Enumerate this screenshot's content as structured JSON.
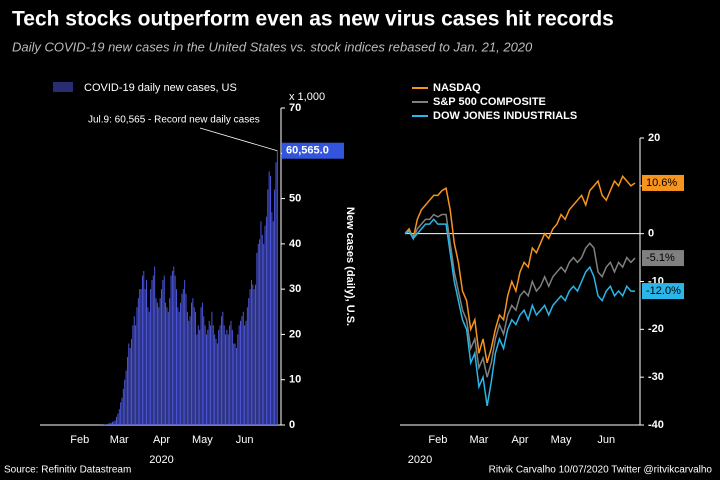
{
  "title": "Tech stocks outperform even as new virus cases hit records",
  "subtitle": "Daily COVID-19 new cases in the United States vs. stock indices rebased to Jan. 21, 2020",
  "source": "Source: Refinitiv Datastream",
  "credit": "Ritvik Carvalho 10/07/2020 Twitter @ritvikcarvalho",
  "chart_data": [
    {
      "type": "bar",
      "series": [
        {
          "name": "COVID-19 daily new cases, US",
          "color": "#4f58e0",
          "values": [
            0,
            0,
            0,
            0,
            0,
            0,
            0,
            0,
            0,
            0,
            0,
            0,
            0,
            0,
            0,
            0,
            0,
            0,
            0,
            0,
            0,
            0,
            0,
            0,
            0,
            0,
            0,
            0,
            0,
            0,
            0,
            0,
            0,
            0,
            0,
            0,
            0,
            0,
            0,
            0,
            0.01,
            0.02,
            0.03,
            0.06,
            0.1,
            0.2,
            0.3,
            0.4,
            0.5,
            0.7,
            0.8,
            1,
            1.8,
            2.5,
            3.5,
            5,
            6,
            8,
            10,
            12,
            15,
            18,
            17,
            19,
            22,
            24,
            22,
            26,
            28,
            30,
            30,
            33,
            34,
            30,
            32,
            26,
            25,
            30,
            32,
            33,
            35,
            28,
            27,
            26,
            28,
            30,
            32,
            33,
            27,
            26,
            25,
            28,
            33,
            34,
            35,
            33,
            30,
            26,
            25,
            27,
            29,
            30,
            32,
            29,
            25,
            23,
            24,
            27,
            28,
            26,
            25,
            20,
            22,
            21,
            26,
            27,
            24,
            22,
            20,
            21,
            23,
            22,
            25,
            22,
            20,
            19,
            18,
            21,
            22,
            24,
            25,
            22,
            20,
            21,
            20,
            22,
            23,
            21,
            18,
            18,
            17,
            20,
            22,
            23,
            24,
            25,
            22,
            23,
            26,
            28,
            30,
            32,
            31,
            30,
            31,
            38,
            40,
            41,
            45,
            42,
            40,
            44,
            46,
            52,
            56,
            55,
            47,
            45,
            52,
            58,
            60.565
          ]
        }
      ],
      "xticks": [
        {
          "value": 25,
          "label": "Feb"
        },
        {
          "value": 54,
          "label": "Mar"
        },
        {
          "value": 85,
          "label": "Apr"
        },
        {
          "value": 115,
          "label": "May"
        },
        {
          "value": 146,
          "label": "Jun"
        }
      ],
      "xlabel": "2020",
      "ylabel": "New cases (daily), U.S.",
      "yunit": "x 1,000",
      "ylim": [
        0,
        70
      ],
      "yticks": [
        0,
        10,
        20,
        30,
        40,
        50,
        60,
        70
      ],
      "annotation": "Jul.9: 60,565 - Record new daily cases",
      "last_label": "60,565.0"
    },
    {
      "type": "line",
      "series": [
        {
          "name": "NASDAQ",
          "color": "#f7941d",
          "end_label": "10.6%",
          "values": [
            0,
            1,
            -1,
            3,
            5,
            6,
            7,
            8,
            8,
            9,
            9.5,
            5,
            -2,
            -6,
            -12,
            -14,
            -20,
            -18,
            -25,
            -22,
            -27,
            -24,
            -20,
            -17,
            -18,
            -13,
            -10,
            -12,
            -8,
            -6,
            -7,
            -3,
            -4,
            -2,
            0,
            -1,
            1,
            2,
            4,
            3,
            5,
            6,
            7,
            8,
            6,
            9,
            10,
            11,
            8,
            7,
            9,
            11,
            10,
            12,
            11,
            10,
            10.6
          ]
        },
        {
          "name": "S&P 500 COMPOSITE",
          "color": "#808080",
          "end_label": "-5.1%",
          "values": [
            0,
            0.5,
            -1,
            1,
            2,
            3,
            3,
            4,
            3.5,
            4,
            4,
            -2,
            -8,
            -12,
            -16,
            -18,
            -24,
            -22,
            -28,
            -26,
            -30,
            -27,
            -22,
            -19,
            -21,
            -17,
            -15,
            -16,
            -13,
            -12,
            -13,
            -10,
            -12,
            -11,
            -9,
            -11,
            -9,
            -8,
            -7,
            -8,
            -6,
            -5,
            -6,
            -5,
            -3,
            -2,
            -3,
            -8,
            -9,
            -7,
            -6,
            -8,
            -6,
            -7,
            -5,
            -6,
            -5.1
          ]
        },
        {
          "name": "DOW JONES INDUSTRIALS",
          "color": "#29b6e8",
          "end_label": "-12.0%",
          "values": [
            0,
            0.5,
            -1,
            0,
            1,
            2,
            2,
            3,
            2,
            2,
            2,
            -4,
            -10,
            -14,
            -18,
            -20,
            -27,
            -25,
            -32,
            -30,
            -36,
            -31,
            -25,
            -22,
            -24,
            -20,
            -18,
            -19,
            -17,
            -16,
            -18,
            -15,
            -17,
            -16,
            -15,
            -17,
            -15,
            -14,
            -13,
            -14,
            -12,
            -11,
            -12,
            -10,
            -8,
            -7,
            -9,
            -13,
            -14,
            -12,
            -11,
            -13,
            -12,
            -13,
            -11,
            -12,
            -12.0
          ]
        }
      ],
      "xticks": [
        {
          "value": 8,
          "label": "Feb"
        },
        {
          "value": 18,
          "label": "Mar"
        },
        {
          "value": 28,
          "label": "Apr"
        },
        {
          "value": 38,
          "label": "May"
        },
        {
          "value": 49,
          "label": "Jun"
        }
      ],
      "xlabel": "2020",
      "ylim": [
        -40,
        20
      ],
      "yticks": [
        -40,
        -30,
        -20,
        -10,
        0,
        10,
        20
      ]
    }
  ]
}
